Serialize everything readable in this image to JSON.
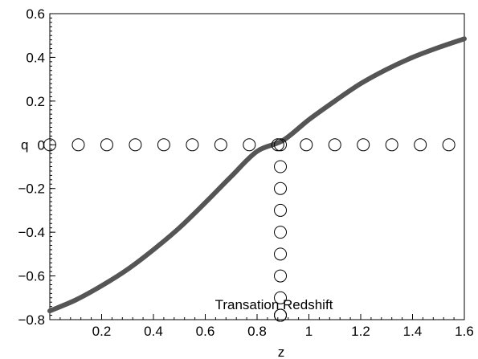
{
  "chart_data": {
    "type": "line",
    "title": "",
    "xlabel": "z",
    "ylabel": "q",
    "xlim": [
      0,
      1.6
    ],
    "ylim": [
      -0.8,
      0.6
    ],
    "x_ticks": [
      0.2,
      0.4,
      0.6,
      0.8,
      1,
      1.2,
      1.4,
      1.6
    ],
    "x_tick_labels": [
      "0.2",
      "0.4",
      "0.6",
      "0.8",
      "1",
      "1.2",
      "1.4",
      "1.6"
    ],
    "y_ticks": [
      0.6,
      0.4,
      0.2,
      0,
      -0.2,
      -0.4,
      -0.6,
      -0.8
    ],
    "y_tick_labels": [
      "0.6",
      "0.4",
      "0.2",
      "0",
      "−0.2",
      "−0.4",
      "−0.6",
      "−0.8"
    ],
    "grid": false,
    "series": [
      {
        "color": "#555555",
        "style": "solid-thick",
        "x": [
          0,
          0.1,
          0.2,
          0.3,
          0.4,
          0.5,
          0.6,
          0.7,
          0.8,
          0.9,
          1.0,
          1.1,
          1.2,
          1.3,
          1.4,
          1.5,
          1.6
        ],
        "y": [
          -0.76,
          -0.71,
          -0.645,
          -0.57,
          -0.48,
          -0.38,
          -0.265,
          -0.145,
          -0.03,
          0.02,
          0.115,
          0.2,
          0.28,
          0.345,
          0.4,
          0.445,
          0.485
        ]
      },
      {
        "color": "#000000",
        "style": "open-circles",
        "x": [
          0,
          0.11,
          0.22,
          0.33,
          0.44,
          0.55,
          0.66,
          0.77,
          0.88,
          0.99,
          1.1,
          1.21,
          1.32,
          1.43,
          1.54
        ],
        "y": [
          0,
          0,
          0,
          0,
          0,
          0,
          0,
          0,
          0,
          0,
          0,
          0,
          0,
          0,
          0
        ]
      },
      {
        "color": "#000000",
        "style": "open-circles",
        "x": [
          0.89,
          0.89,
          0.89,
          0.89,
          0.89,
          0.89,
          0.89,
          0.89,
          0.89,
          0.89,
          0.89
        ],
        "y": [
          0,
          -0.1,
          -0.2,
          -0.3,
          -0.4,
          -0.5,
          -0.6,
          -0.7,
          -0.78,
          -0.78,
          -0.78
        ]
      }
    ],
    "annotations": [
      {
        "text": "Transation Redshift",
        "x": 0.89,
        "y": -0.72
      }
    ]
  }
}
